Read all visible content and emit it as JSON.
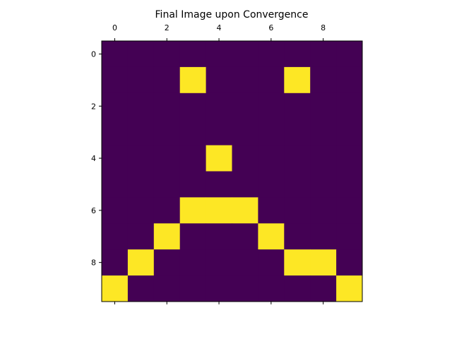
{
  "chart_data": {
    "type": "heatmap",
    "title": "Final Image upon Convergence",
    "xlabel": "",
    "ylabel": "",
    "x_ticks": [
      0,
      2,
      4,
      6,
      8
    ],
    "y_ticks": [
      0,
      2,
      4,
      6,
      8
    ],
    "xlim": [
      -0.5,
      9.5
    ],
    "ylim": [
      9.5,
      -0.5
    ],
    "x_tick_position": "top",
    "bottom_tick_marks": true,
    "grid": false,
    "colors": {
      "0": "#440154",
      "1": "#fde725"
    },
    "values": [
      [
        0,
        0,
        0,
        0,
        0,
        0,
        0,
        0,
        0,
        0
      ],
      [
        0,
        0,
        0,
        1,
        0,
        0,
        0,
        1,
        0,
        0
      ],
      [
        0,
        0,
        0,
        0,
        0,
        0,
        0,
        0,
        0,
        0
      ],
      [
        0,
        0,
        0,
        0,
        0,
        0,
        0,
        0,
        0,
        0
      ],
      [
        0,
        0,
        0,
        0,
        1,
        0,
        0,
        0,
        0,
        0
      ],
      [
        0,
        0,
        0,
        0,
        0,
        0,
        0,
        0,
        0,
        0
      ],
      [
        0,
        0,
        0,
        1,
        1,
        1,
        0,
        0,
        0,
        0
      ],
      [
        0,
        0,
        1,
        0,
        0,
        0,
        1,
        0,
        0,
        0
      ],
      [
        0,
        1,
        0,
        0,
        0,
        0,
        0,
        1,
        1,
        0
      ],
      [
        1,
        0,
        0,
        0,
        0,
        0,
        0,
        0,
        0,
        1
      ]
    ]
  }
}
